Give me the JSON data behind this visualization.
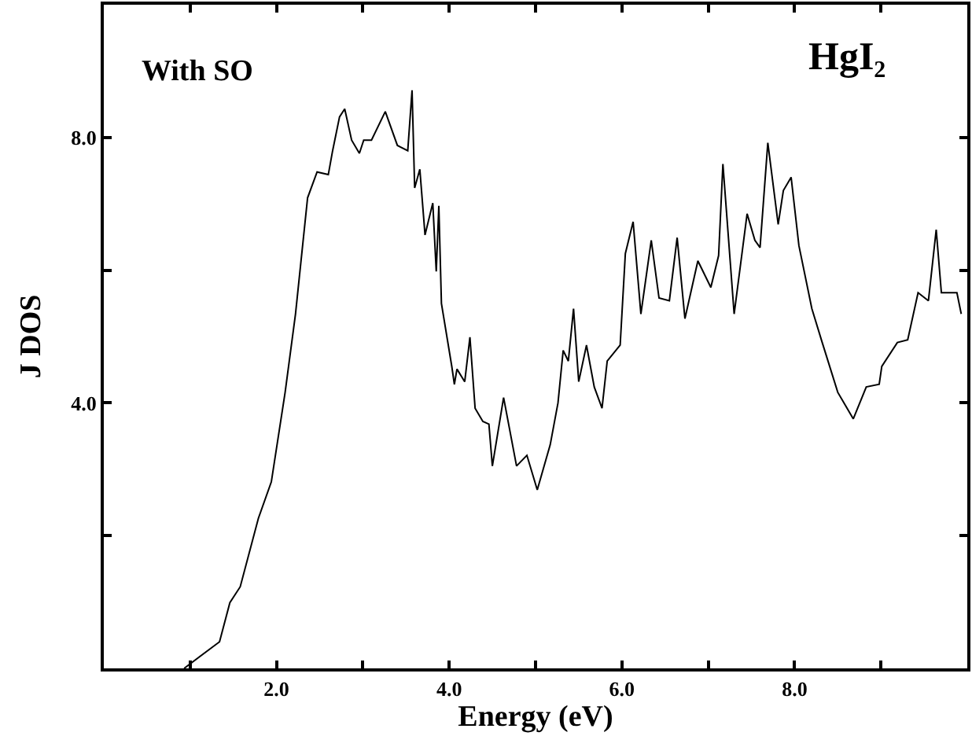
{
  "chart_data": {
    "type": "line",
    "xlabel": "Energy (eV)",
    "ylabel": "J DOS",
    "annotations": [
      "With SO",
      "HgI₂"
    ],
    "xlim": [
      0,
      10
    ],
    "ylim": [
      0,
      10
    ],
    "xticks": [
      {
        "value": 1,
        "label": null
      },
      {
        "value": 2,
        "label": "2.0"
      },
      {
        "value": 3,
        "label": null
      },
      {
        "value": 4,
        "label": "4.0"
      },
      {
        "value": 5,
        "label": null
      },
      {
        "value": 6,
        "label": "6.0"
      },
      {
        "value": 7,
        "label": null
      },
      {
        "value": 8,
        "label": "8.0"
      },
      {
        "value": 9,
        "label": null
      }
    ],
    "yticks": [
      {
        "value": 2,
        "label": null
      },
      {
        "value": 4,
        "label": "4.0"
      },
      {
        "value": 6,
        "label": null
      },
      {
        "value": 8,
        "label": "8.0"
      }
    ],
    "grid": false,
    "marker": "none",
    "line_style": "solid",
    "series": [
      {
        "color": "#000000",
        "x": [
          0.93,
          1.34,
          1.46,
          1.58,
          1.79,
          1.94,
          2.1,
          2.22,
          2.36,
          2.47,
          2.6,
          2.65,
          2.73,
          2.79,
          2.87,
          2.96,
          3.01,
          3.1,
          3.26,
          3.4,
          3.52,
          3.57,
          3.6,
          3.66,
          3.72,
          3.81,
          3.85,
          3.88,
          3.91,
          4.03,
          4.06,
          4.09,
          4.18,
          4.24,
          4.3,
          4.39,
          4.46,
          4.5,
          4.63,
          4.78,
          4.9,
          5.02,
          5.17,
          5.26,
          5.32,
          5.38,
          5.44,
          5.5,
          5.59,
          5.68,
          5.77,
          5.83,
          5.98,
          6.04,
          6.13,
          6.22,
          6.34,
          6.43,
          6.55,
          6.64,
          6.73,
          6.88,
          7.03,
          7.12,
          7.17,
          7.3,
          7.45,
          7.54,
          7.6,
          7.69,
          7.81,
          7.87,
          7.96,
          8.05,
          8.2,
          8.32,
          8.5,
          8.68,
          8.83,
          8.98,
          9.01,
          9.19,
          9.31,
          9.43,
          9.55,
          9.64,
          9.7,
          9.88,
          9.93
        ],
        "values": [
          0,
          0.4,
          0.99,
          1.23,
          2.26,
          2.81,
          4.16,
          5.34,
          7.09,
          7.48,
          7.44,
          7.8,
          8.31,
          8.43,
          7.96,
          7.76,
          7.96,
          7.96,
          8.39,
          7.88,
          7.8,
          8.71,
          7.24,
          7.52,
          6.53,
          7.01,
          5.98,
          6.97,
          5.5,
          4.55,
          4.28,
          4.51,
          4.32,
          4.99,
          3.92,
          3.72,
          3.68,
          3.05,
          4.08,
          3.05,
          3.21,
          2.69,
          3.37,
          4.0,
          4.79,
          4.63,
          5.42,
          4.32,
          4.87,
          4.24,
          3.92,
          4.63,
          4.87,
          6.25,
          6.73,
          5.34,
          6.45,
          5.58,
          5.54,
          6.49,
          5.27,
          6.14,
          5.74,
          6.22,
          7.6,
          5.34,
          6.85,
          6.45,
          6.34,
          7.92,
          6.69,
          7.2,
          7.4,
          6.37,
          5.42,
          4.91,
          4.16,
          3.76,
          4.24,
          4.28,
          4.55,
          4.91,
          4.95,
          5.66,
          5.54,
          6.61,
          5.66,
          5.66,
          5.34
        ]
      }
    ]
  }
}
